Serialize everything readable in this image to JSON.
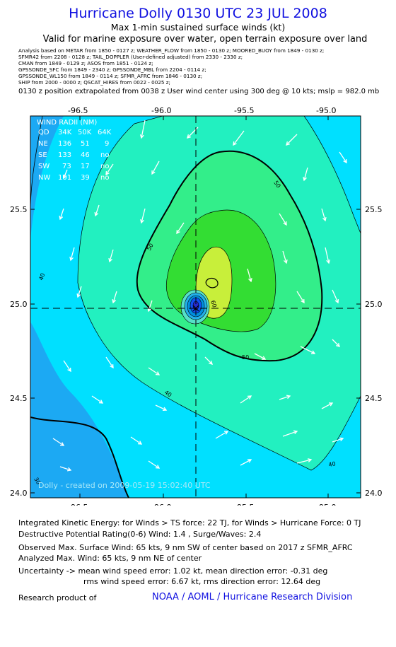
{
  "header": {
    "title": "Hurricane Dolly 0130 UTC 23 JUL 2008",
    "subtitle": "Max 1-min sustained surface winds (kt)",
    "valid": "Valid for marine exposure over water, open terrain exposure over land"
  },
  "sources": [
    "Analysis based on   METAR from 1850 - 0127 z;  WEATHER_FLOW from 1850 - 0130 z;   MOORED_BUOY from 1849 - 0130 z;",
    "SFMR42 from 2208 - 0128 z;  TAIL_DOPPLER (User-defined adjusted) from 2330 - 2330 z;",
    "CMAN from 1849 - 0129 z;  ASOS from 1851 - 0124 z;",
    "GPSSONDE_SFC from 1849 - 2340 z;  GPSSONDE_MBL from 2204 - 0114 z;",
    "GPSSONDE_WL150 from 1849 - 0114 z;  SFMR_AFRC from 1846 - 0130 z;",
    "SHIP from 2000 - 0000 z;  QSCAT_HIRES from 0022 - 0025 z;"
  ],
  "position_note": "0130 z position extrapolated from 0038 z User wind center using 300 deg @ 10 kts; mslp = 982.0 mb",
  "map": {
    "lon_ticks": [
      "-96.5",
      "-96.0",
      "-95.5",
      "-95.0"
    ],
    "lat_ticks": [
      "25.5",
      "25.0",
      "24.5",
      "24.0"
    ],
    "contour_labels": [
      "40",
      "40",
      "40",
      "50",
      "50",
      "50",
      "60",
      "30"
    ],
    "center": {
      "lon": -95.82,
      "lat": 24.98
    },
    "credit": "Dolly - created on 2009-05-19 15:02:40 UTC",
    "colors": {
      "band30": "#1ca9f3",
      "band40": "#00e0ff",
      "band50": "#22f0c0",
      "band60": "#33ee8a",
      "band64": "#33dd33",
      "band70": "#c8ef3a"
    }
  },
  "wind_radii": {
    "title": "WIND RADII (NM)",
    "header": [
      "QD",
      "34K",
      "50K",
      "64K"
    ],
    "rows": [
      [
        "NE",
        "136",
        "51",
        "9"
      ],
      [
        "SE",
        "133",
        "46",
        "no"
      ],
      [
        "SW",
        "73",
        "17",
        "no"
      ],
      [
        "NW",
        "101",
        "39",
        "no"
      ]
    ]
  },
  "bottom": {
    "ike": "Integrated Kinetic Energy:  for Winds > TS force: 22 TJ,  for Winds > Hurricane Force: 0 TJ",
    "dpr": "Destructive Potential Rating(0-6)   Wind: 1.4 , Surge/Waves: 2.4",
    "obs": "Observed Max. Surface Wind: 65 kts, 9 nm SW of center based on 2017 z SFMR_AFRC",
    "ana": "Analyzed Max. Wind: 65 kts, 9 nm NE of center",
    "unc1": "Uncertainty -> mean wind speed error: 1.02 kt,   mean direction error:  -0.31 deg",
    "unc2": "rms wind speed error: 6.67 kt,   rms direction error: 12.64 deg",
    "research": "Research product of",
    "org": "NOAA / AOML / Hurricane Research Division"
  }
}
